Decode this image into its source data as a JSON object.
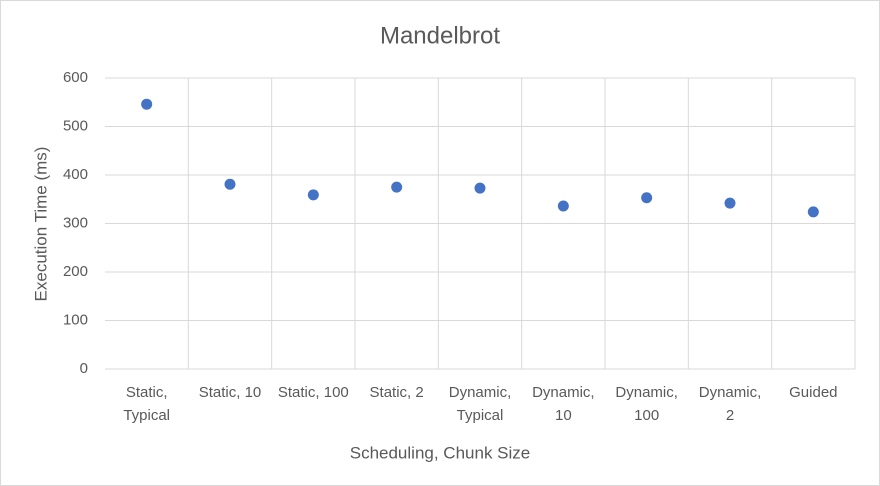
{
  "chart_data": {
    "type": "scatter",
    "title": "Mandelbrot",
    "x_label": "Scheduling, Chunk Size",
    "y_label": "Execution Time (ms)",
    "categories": [
      "Static,\nTypical",
      "Static, 10",
      "Static, 100",
      "Static, 2",
      "Dynamic,\nTypical",
      "Dynamic,\n10",
      "Dynamic,\n100",
      "Dynamic,\n2",
      "Guided"
    ],
    "values": [
      546,
      381,
      359,
      375,
      373,
      336,
      353,
      342,
      324
    ],
    "color": "#4472c4",
    "ylim": [
      0,
      600
    ],
    "yticks": [
      0,
      100,
      200,
      300,
      400,
      500,
      600
    ],
    "grid": true
  }
}
